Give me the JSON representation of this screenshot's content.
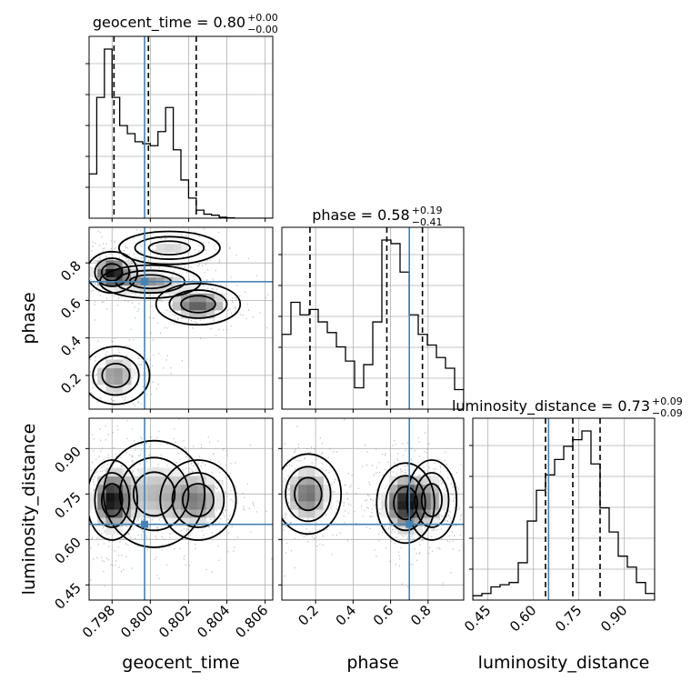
{
  "chart_data": {
    "type": "corner",
    "parameters": [
      "geocent_time",
      "phase",
      "luminosity_distance"
    ],
    "truths": {
      "geocent_time": 0.7997,
      "phase": 0.7,
      "luminosity_distance": 0.65
    },
    "ranges": {
      "geocent_time": [
        0.7968,
        0.8064
      ],
      "phase": [
        0.02,
        0.99
      ],
      "luminosity_distance": [
        0.4,
        1.0
      ]
    },
    "ticks": {
      "geocent_time": {
        "values": [
          0.798,
          0.8,
          0.802,
          0.804,
          0.806
        ],
        "labels": [
          "0.798",
          "0.800",
          "0.802",
          "0.804",
          "0.806"
        ]
      },
      "phase": {
        "values": [
          0.2,
          0.4,
          0.6,
          0.8
        ],
        "labels": [
          "0.2",
          "0.4",
          "0.6",
          "0.8"
        ]
      },
      "luminosity_distance": {
        "values": [
          0.45,
          0.6,
          0.75,
          0.9
        ],
        "labels": [
          "0.45",
          "0.60",
          "0.75",
          "0.90"
        ]
      }
    },
    "titles": [
      {
        "name": "geocent_time",
        "main": "geocent_time = 0.80",
        "plus": "+0.00",
        "minus": "−0.00"
      },
      {
        "name": "phase",
        "main": "phase = 0.58",
        "plus": "+0.19",
        "minus": "−0.41"
      },
      {
        "name": "luminosity_distance",
        "main": "luminosity_distance = 0.73",
        "plus": "+0.09",
        "minus": "−0.09"
      }
    ],
    "quantiles": {
      "geocent_time": [
        0.7981,
        0.7999,
        0.8024
      ],
      "phase": [
        0.17,
        0.58,
        0.77
      ],
      "luminosity_distance": [
        0.64,
        0.73,
        0.82
      ]
    },
    "histograms": {
      "geocent_time": {
        "edges_start": 0.7968,
        "bin_width": 0.0004,
        "counts": [
          0.22,
          0.6,
          0.84,
          0.6,
          0.46,
          0.42,
          0.38,
          0.37,
          0.36,
          0.43,
          0.55,
          0.34,
          0.19,
          0.1,
          0.04,
          0.02,
          0.015,
          0.005,
          0.002,
          0.0,
          0.0,
          0.0,
          0.0,
          0.0
        ]
      },
      "phase": {
        "edges_start": 0.02,
        "bin_width": 0.0485,
        "counts": [
          0.42,
          0.6,
          0.53,
          0.56,
          0.49,
          0.43,
          0.35,
          0.27,
          0.12,
          0.25,
          0.49,
          0.95,
          0.93,
          0.77,
          0.53,
          0.42,
          0.36,
          0.29,
          0.23,
          0.11
        ]
      },
      "luminosity_distance": {
        "edges_start": 0.4,
        "bin_width": 0.03,
        "counts": [
          0.02,
          0.03,
          0.06,
          0.07,
          0.08,
          0.17,
          0.36,
          0.5,
          0.57,
          0.64,
          0.7,
          0.73,
          0.77,
          0.62,
          0.42,
          0.31,
          0.2,
          0.15,
          0.08,
          0.03
        ]
      }
    },
    "density_2d": {
      "geocent_time_vs_phase": {
        "note_from_plot": "bimodal in phase, ridge near 0.8 and near 0.2",
        "blobs": [
          {
            "x": 0.798,
            "y": 0.75,
            "sx": 0.0006,
            "sy": 0.05,
            "w": 1.0
          },
          {
            "x": 0.8,
            "y": 0.7,
            "sx": 0.0012,
            "sy": 0.04,
            "w": 0.6
          },
          {
            "x": 0.8025,
            "y": 0.58,
            "sx": 0.001,
            "sy": 0.05,
            "w": 0.8
          },
          {
            "x": 0.7982,
            "y": 0.2,
            "sx": 0.0008,
            "sy": 0.07,
            "w": 0.6
          },
          {
            "x": 0.801,
            "y": 0.88,
            "sx": 0.0012,
            "sy": 0.04,
            "w": 0.35
          }
        ]
      },
      "geocent_time_vs_luminosity_distance": {
        "blobs": [
          {
            "x": 0.798,
            "y": 0.73,
            "sx": 0.0006,
            "sy": 0.06,
            "w": 1.0
          },
          {
            "x": 0.8002,
            "y": 0.75,
            "sx": 0.0012,
            "sy": 0.08,
            "w": 0.45
          },
          {
            "x": 0.8025,
            "y": 0.73,
            "sx": 0.0009,
            "sy": 0.06,
            "w": 0.6
          }
        ]
      },
      "phase_vs_luminosity_distance": {
        "blobs": [
          {
            "x": 0.16,
            "y": 0.75,
            "sx": 0.08,
            "sy": 0.06,
            "w": 0.7
          },
          {
            "x": 0.68,
            "y": 0.72,
            "sx": 0.07,
            "sy": 0.06,
            "w": 1.0
          },
          {
            "x": 0.82,
            "y": 0.73,
            "sx": 0.06,
            "sy": 0.06,
            "w": 0.45
          }
        ]
      }
    },
    "colors": {
      "truth": "#4682b4",
      "line": "#000000",
      "grid": "#b0b0b0"
    }
  }
}
